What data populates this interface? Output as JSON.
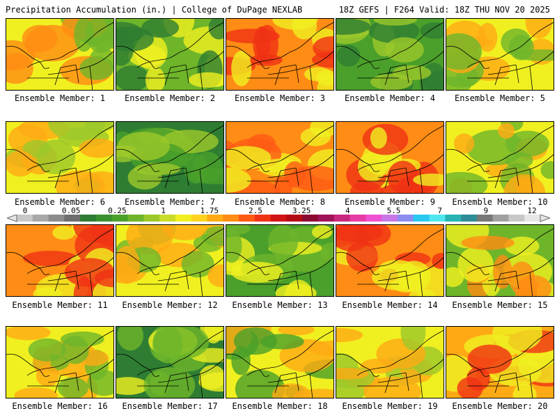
{
  "header": {
    "left": "Precipitation Accumulation (in.) | College of DuPage NEXLAB",
    "right": "18Z GEFS | F264 Valid: 18Z THU NOV 20 2025"
  },
  "colorbar": {
    "tick_labels": [
      "0",
      "0.05",
      "0.25",
      "1",
      "1.75",
      "2.5",
      "3.25",
      "4",
      "5.5",
      "7",
      "9",
      "12"
    ],
    "colors": [
      "#c8c8c8",
      "#a8a8a8",
      "#8c8c8c",
      "#6e6e6e",
      "#2e7d32",
      "#3a8f2e",
      "#4aa02a",
      "#6eb52a",
      "#9cc82a",
      "#c8dc28",
      "#f0f020",
      "#ffd21e",
      "#ffaa14",
      "#ff8c14",
      "#ff5a14",
      "#f03214",
      "#d21414",
      "#b40a14",
      "#8c0a32",
      "#a0145a",
      "#c8287d",
      "#e63ca5",
      "#f050d2",
      "#c878e6",
      "#8c8cf0",
      "#28c8f0",
      "#50e6f0",
      "#28b4b4",
      "#2d8c96",
      "#787878",
      "#a0a0a0",
      "#c8c8c8",
      "#e6e6e6"
    ]
  },
  "panels": [
    {
      "label": "Ensemble Member: 1",
      "palette": [
        "#f0f020",
        "#ff8c14",
        "#6eb52a"
      ]
    },
    {
      "label": "Ensemble Member: 2",
      "palette": [
        "#6eb52a",
        "#f0f020",
        "#2e7d32"
      ]
    },
    {
      "label": "Ensemble Member: 3",
      "palette": [
        "#ff8c14",
        "#f0f020",
        "#f03214"
      ]
    },
    {
      "label": "Ensemble Member: 4",
      "palette": [
        "#4aa02a",
        "#2e7d32",
        "#9cc82a"
      ]
    },
    {
      "label": "Ensemble Member: 5",
      "palette": [
        "#f0f020",
        "#ffaa14",
        "#6eb52a"
      ]
    },
    {
      "label": "Ensemble Member: 6",
      "palette": [
        "#f0f020",
        "#9cc82a",
        "#ffaa14"
      ]
    },
    {
      "label": "Ensemble Member: 7",
      "palette": [
        "#2e7d32",
        "#4aa02a",
        "#9cc82a"
      ]
    },
    {
      "label": "Ensemble Member: 8",
      "palette": [
        "#ff8c14",
        "#f0f020",
        "#ff5a14"
      ]
    },
    {
      "label": "Ensemble Member: 9",
      "palette": [
        "#ff8c14",
        "#f03214",
        "#f0f020"
      ]
    },
    {
      "label": "Ensemble Member: 10",
      "palette": [
        "#f0f020",
        "#ffaa14",
        "#6eb52a"
      ]
    },
    {
      "label": "Ensemble Member: 11",
      "palette": [
        "#ff8c14",
        "#f03214",
        "#f0f020"
      ]
    },
    {
      "label": "Ensemble Member: 12",
      "palette": [
        "#f0f020",
        "#6eb52a",
        "#ffaa14"
      ]
    },
    {
      "label": "Ensemble Member: 13",
      "palette": [
        "#4aa02a",
        "#6eb52a",
        "#f0f020"
      ]
    },
    {
      "label": "Ensemble Member: 14",
      "palette": [
        "#ff8c14",
        "#f0f020",
        "#f03214"
      ]
    },
    {
      "label": "Ensemble Member: 15",
      "palette": [
        "#6eb52a",
        "#f0f020",
        "#ff8c14"
      ]
    },
    {
      "label": "Ensemble Member: 16",
      "palette": [
        "#f0f020",
        "#ffaa14",
        "#6eb52a"
      ]
    },
    {
      "label": "Ensemble Member: 17",
      "palette": [
        "#2e7d32",
        "#6eb52a",
        "#f0f020"
      ]
    },
    {
      "label": "Ensemble Member: 18",
      "palette": [
        "#f0f020",
        "#ffaa14",
        "#4aa02a"
      ]
    },
    {
      "label": "Ensemble Member: 19",
      "palette": [
        "#f0f020",
        "#9cc82a",
        "#ffaa14"
      ]
    },
    {
      "label": "Ensemble Member: 20",
      "palette": [
        "#ffaa14",
        "#f03214",
        "#f0f020"
      ]
    }
  ]
}
